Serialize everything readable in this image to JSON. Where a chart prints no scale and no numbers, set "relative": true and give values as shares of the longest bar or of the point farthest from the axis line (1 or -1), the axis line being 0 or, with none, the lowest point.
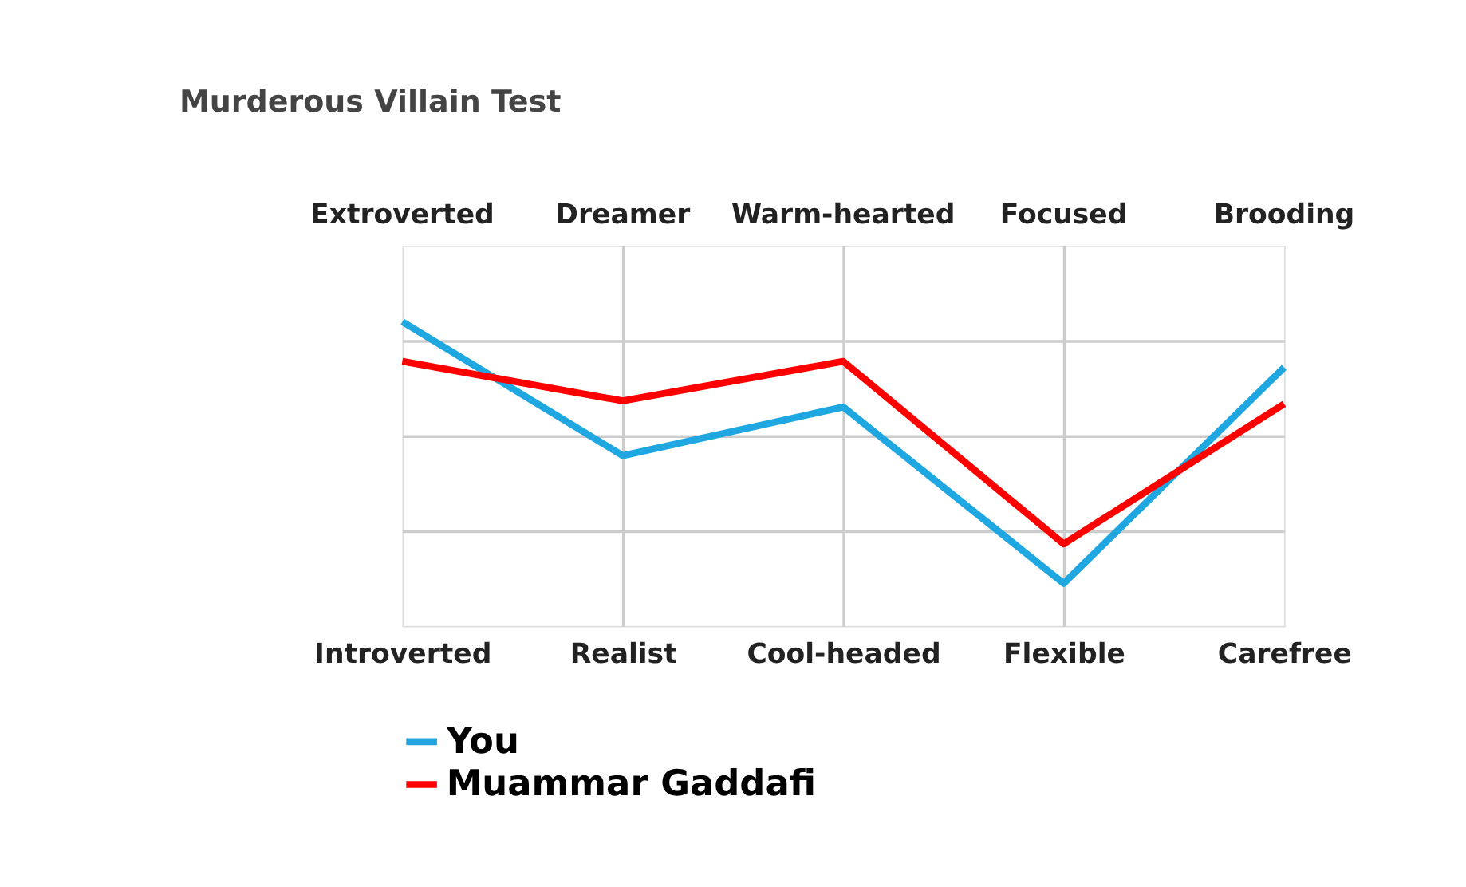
{
  "chart_data": {
    "type": "line",
    "title": "Murderous Villain Test",
    "relative": true,
    "grid": true,
    "legend": "bottom",
    "line_style": "solid",
    "categories": [
      "Introverted",
      "Realist",
      "Cool-headed",
      "Flexible",
      "Carefree"
    ],
    "annotations": [
      "Extroverted",
      "Dreamer",
      "Warm-hearted",
      "Focused",
      "Brooding"
    ],
    "series": [
      {
        "name": "You",
        "color": "#1ea7e1",
        "values": [
          1,
          0.56,
          0.72,
          0.14,
          0.85
        ]
      },
      {
        "name": "Muammar Gaddafi",
        "color": "#ff0000",
        "values": [
          0.87,
          0.74,
          0.87,
          0.27,
          0.73
        ]
      }
    ]
  }
}
